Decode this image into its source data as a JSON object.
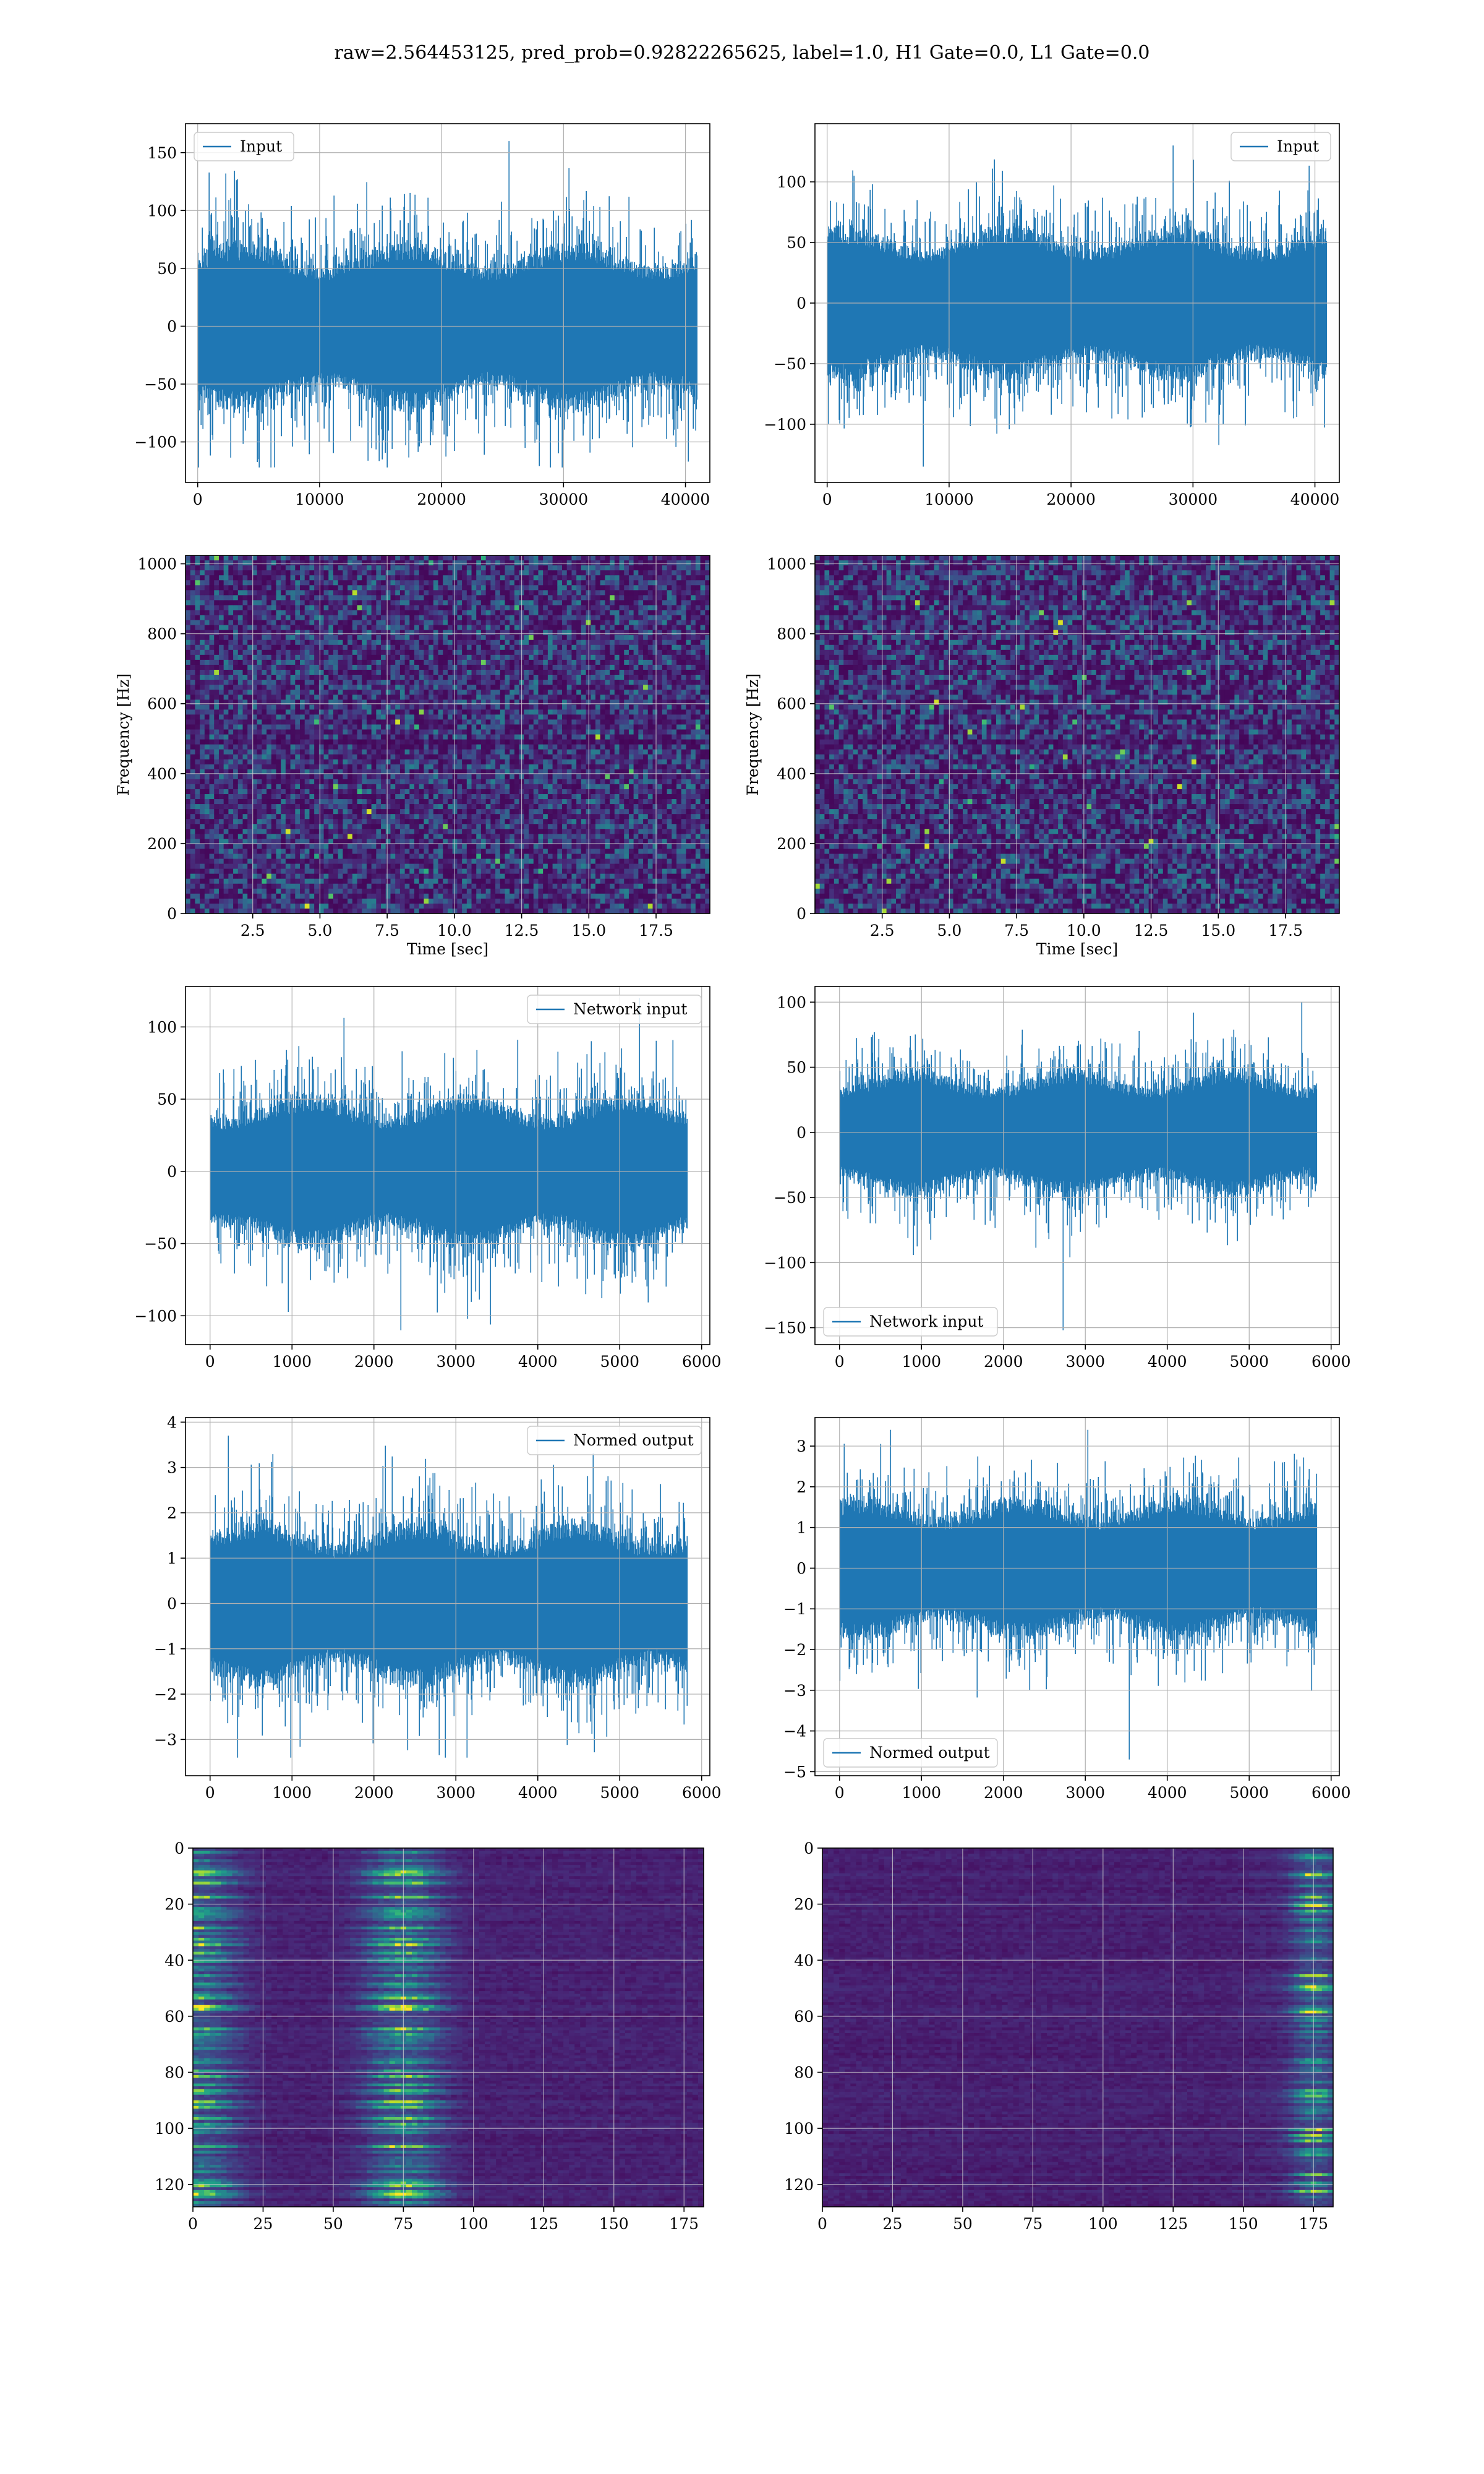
{
  "figure": {
    "title": "raw=2.564453125, pred_prob=0.92822265625, label=1.0, H1 Gate=0.0, L1 Gate=0.0"
  },
  "colors": {
    "line": "#1f77b4",
    "grid": "#b0b0b0"
  },
  "chart_data": [
    {
      "id": "h1-input",
      "type": "line",
      "series": [
        {
          "name": "Input",
          "n": 40960,
          "typical_amplitude": 75,
          "max": 160,
          "min": -122
        }
      ],
      "xlim": [
        -1000,
        42000
      ],
      "ylim": [
        -135,
        175
      ],
      "xticks": [
        0,
        10000,
        20000,
        30000,
        40000
      ],
      "yticks": [
        -100,
        -50,
        0,
        50,
        100,
        150
      ],
      "legend": "upper left",
      "grid": true
    },
    {
      "id": "l1-input",
      "type": "line",
      "series": [
        {
          "name": "Input",
          "n": 40960,
          "typical_amplitude": 65,
          "max": 130,
          "min": -135
        }
      ],
      "xlim": [
        -1000,
        42000
      ],
      "ylim": [
        -148,
        148
      ],
      "xticks": [
        0,
        10000,
        20000,
        30000,
        40000
      ],
      "yticks": [
        -100,
        -50,
        0,
        50,
        100
      ],
      "legend": "upper right",
      "grid": true
    },
    {
      "id": "h1-spectrogram",
      "type": "heatmap",
      "colormap": "viridis",
      "xlim": [
        0,
        19.5
      ],
      "ylim": [
        0,
        1024
      ],
      "xticks": [
        2.5,
        5.0,
        7.5,
        10.0,
        12.5,
        15.0,
        17.5
      ],
      "yticks": [
        0,
        200,
        400,
        600,
        800,
        1000
      ],
      "xlabel": "Time [sec]",
      "ylabel": "Frequency [Hz]",
      "grid": true
    },
    {
      "id": "l1-spectrogram",
      "type": "heatmap",
      "colormap": "viridis",
      "xlim": [
        0,
        19.5
      ],
      "ylim": [
        0,
        1024
      ],
      "xticks": [
        2.5,
        5.0,
        7.5,
        10.0,
        12.5,
        15.0,
        17.5
      ],
      "yticks": [
        0,
        200,
        400,
        600,
        800,
        1000
      ],
      "xlabel": "Time [sec]",
      "ylabel": "Frequency [Hz]",
      "grid": true
    },
    {
      "id": "h1-network-input",
      "type": "line",
      "series": [
        {
          "name": "Network input",
          "n": 5824,
          "typical_amplitude": 55,
          "max": 120,
          "min": -110
        }
      ],
      "xlim": [
        -300,
        6100
      ],
      "ylim": [
        -120,
        128
      ],
      "xticks": [
        0,
        1000,
        2000,
        3000,
        4000,
        5000,
        6000
      ],
      "yticks": [
        -100,
        -50,
        0,
        50,
        100
      ],
      "legend": "upper right",
      "grid": true
    },
    {
      "id": "l1-network-input",
      "type": "line",
      "series": [
        {
          "name": "Network input",
          "n": 5824,
          "typical_amplitude": 50,
          "max": 100,
          "min": -152
        }
      ],
      "xlim": [
        -300,
        6100
      ],
      "ylim": [
        -163,
        112
      ],
      "xticks": [
        0,
        1000,
        2000,
        3000,
        4000,
        5000,
        6000
      ],
      "yticks": [
        -150,
        -100,
        -50,
        0,
        50,
        100
      ],
      "legend": "lower left",
      "grid": true
    },
    {
      "id": "h1-normed-output",
      "type": "line",
      "series": [
        {
          "name": "Normed output",
          "n": 5824,
          "typical_amplitude": 1.9,
          "max": 3.7,
          "min": -3.4
        }
      ],
      "xlim": [
        -300,
        6100
      ],
      "ylim": [
        -3.8,
        4.1
      ],
      "xticks": [
        0,
        1000,
        2000,
        3000,
        4000,
        5000,
        6000
      ],
      "yticks": [
        -3,
        -2,
        -1,
        0,
        1,
        2,
        3,
        4
      ],
      "legend": "upper right",
      "grid": true
    },
    {
      "id": "l1-normed-output",
      "type": "line",
      "series": [
        {
          "name": "Normed output",
          "n": 5824,
          "typical_amplitude": 1.8,
          "max": 3.4,
          "min": -4.7
        }
      ],
      "xlim": [
        -300,
        6100
      ],
      "ylim": [
        -5.1,
        3.7
      ],
      "xticks": [
        0,
        1000,
        2000,
        3000,
        4000,
        5000,
        6000
      ],
      "yticks": [
        -5,
        -4,
        -3,
        -2,
        -1,
        0,
        1,
        2,
        3
      ],
      "legend": "lower left",
      "grid": true
    },
    {
      "id": "h1-feature-map",
      "type": "heatmap",
      "colormap": "viridis",
      "xlim": [
        0,
        182
      ],
      "ylim": [
        128,
        0
      ],
      "xticks": [
        0,
        25,
        50,
        75,
        100,
        125,
        150,
        175
      ],
      "yticks": [
        0,
        20,
        40,
        60,
        80,
        100,
        120
      ],
      "hot_columns": [
        0,
        75
      ],
      "grid": true
    },
    {
      "id": "l1-feature-map",
      "type": "heatmap",
      "colormap": "viridis",
      "xlim": [
        0,
        182
      ],
      "ylim": [
        128,
        0
      ],
      "xticks": [
        0,
        25,
        50,
        75,
        100,
        125,
        150,
        175
      ],
      "yticks": [
        0,
        20,
        40,
        60,
        80,
        100,
        120
      ],
      "hot_columns": [
        175
      ],
      "grid": true
    }
  ]
}
